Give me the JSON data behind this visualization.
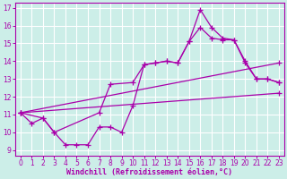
{
  "xlabel": "Windchill (Refroidissement éolien,°C)",
  "bg_color": "#cceee8",
  "line_color": "#aa00aa",
  "grid_color": "#ffffff",
  "xlim": [
    -0.5,
    23.5
  ],
  "ylim": [
    8.7,
    17.3
  ],
  "xticks": [
    0,
    1,
    2,
    3,
    4,
    5,
    6,
    7,
    8,
    9,
    10,
    11,
    12,
    13,
    14,
    15,
    16,
    17,
    18,
    19,
    20,
    21,
    22,
    23
  ],
  "yticks": [
    9,
    10,
    11,
    12,
    13,
    14,
    15,
    16,
    17
  ],
  "lines": [
    {
      "x": [
        0,
        1,
        2,
        3,
        4,
        5,
        6,
        7,
        8,
        9,
        10,
        11,
        12,
        13,
        14,
        15,
        16,
        17,
        18,
        19,
        20,
        21,
        22,
        23
      ],
      "y": [
        11.1,
        10.5,
        10.8,
        10.0,
        9.3,
        9.3,
        9.3,
        10.3,
        10.3,
        10.0,
        11.5,
        13.8,
        13.9,
        14.0,
        13.9,
        15.1,
        16.9,
        15.9,
        15.3,
        15.2,
        14.0,
        13.0,
        13.0,
        12.8
      ]
    },
    {
      "x": [
        0,
        2,
        3,
        7,
        8,
        10,
        11,
        12,
        13,
        14,
        15,
        16,
        17,
        18,
        19,
        20,
        21,
        22,
        23
      ],
      "y": [
        11.1,
        10.8,
        10.0,
        11.1,
        12.7,
        12.8,
        13.8,
        13.9,
        14.0,
        13.9,
        15.1,
        15.9,
        15.3,
        15.2,
        15.2,
        13.9,
        13.0,
        13.0,
        12.8
      ]
    },
    {
      "x": [
        0,
        23
      ],
      "y": [
        11.1,
        13.9
      ]
    },
    {
      "x": [
        0,
        23
      ],
      "y": [
        11.1,
        12.2
      ]
    }
  ]
}
